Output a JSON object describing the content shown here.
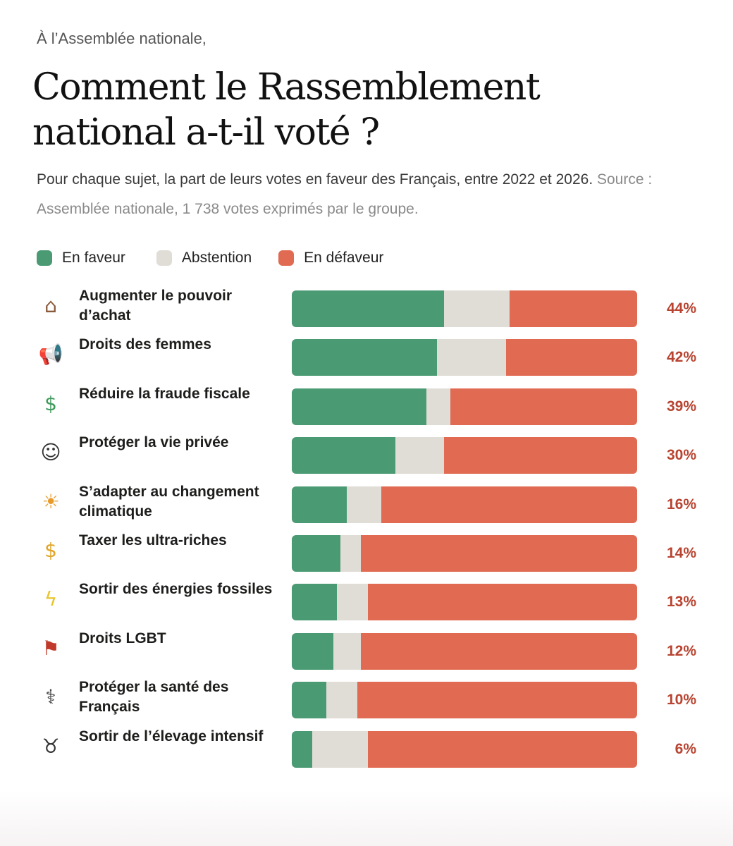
{
  "header": {
    "eyebrow": "À l’Assemblée nationale,",
    "title": "Comment le Rassemblement national a-t-il voté ?",
    "subtitle_main": "Pour chaque sujet, la part de leurs votes en faveur des Français, entre 2022 et 2026.",
    "subtitle_source": "Source : Assemblée nationale, 1 738 votes exprimés par le groupe."
  },
  "colors": {
    "favour": "#4a9a73",
    "abstention": "#e0dcd6",
    "against": "#e06a52",
    "percent_text": "#b84431"
  },
  "legend": [
    {
      "label": "En faveur",
      "color": "#4a9a73"
    },
    {
      "label": "Abstention",
      "color": "#e0dcd6"
    },
    {
      "label": "En défaveur",
      "color": "#e06a52"
    }
  ],
  "chart_data": {
    "type": "bar",
    "orientation": "horizontal",
    "stacked": true,
    "unit": "%",
    "categories": [
      "Augmenter le pouvoir d’achat",
      "Droits des femmes",
      "Réduire la fraude fiscale",
      "Protéger la vie privée",
      "S’adapter au changement climatique",
      "Taxer les ultra-riches",
      "Sortir des énergies fossiles",
      "Droits LGBT",
      "Protéger la santé des Français",
      "Sortir de l’élevage intensif"
    ],
    "icons": [
      "house-icon",
      "megaphone-icon",
      "money-icon",
      "privacy-person-icon",
      "thermometer-sun-icon",
      "money-bags-icon",
      "lightning-icon",
      "rainbow-flag-icon",
      "stethoscope-icon",
      "cow-icon"
    ],
    "series": [
      {
        "name": "En faveur",
        "values": [
          44,
          42,
          39,
          30,
          16,
          14,
          13,
          12,
          10,
          6
        ]
      },
      {
        "name": "Abstention",
        "values": [
          19,
          20,
          7,
          14,
          10,
          6,
          9,
          8,
          9,
          16
        ]
      },
      {
        "name": "En défaveur",
        "values": [
          37,
          38,
          54,
          56,
          74,
          80,
          78,
          80,
          81,
          78
        ]
      }
    ],
    "data_labels": [
      "44%",
      "42%",
      "39%",
      "30%",
      "16%",
      "14%",
      "13%",
      "12%",
      "10%",
      "6%"
    ],
    "xlim": [
      0,
      100
    ],
    "grid": false,
    "legend_position": "top-left"
  }
}
